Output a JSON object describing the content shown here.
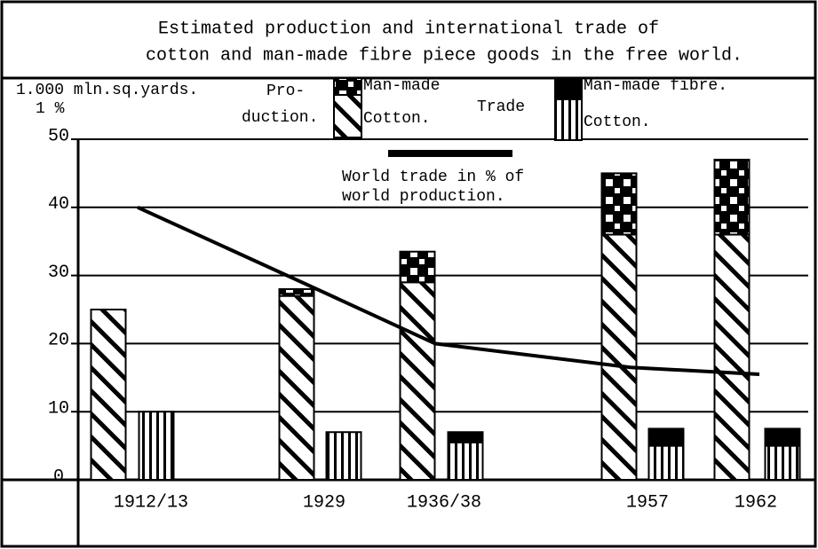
{
  "chart_data": {
    "type": "bar_line",
    "title": [
      "Estimated production and international trade of",
      "cotton and man-made fibre piece goods in the free world."
    ],
    "ylabel": [
      "1.000 mln.sq.yards.",
      "1 %"
    ],
    "production_label": [
      "Pro-",
      "duction."
    ],
    "trade_label": "Trade",
    "annotation": [
      "World trade in % of",
      "world production."
    ],
    "categories": [
      "1912/13",
      "1929",
      "1936/38",
      "1957",
      "1962"
    ],
    "ylim": [
      0,
      50
    ],
    "yticks": [
      0,
      10,
      20,
      30,
      40,
      50
    ],
    "grid": true,
    "series": [
      {
        "name": "Cotton.",
        "group": "production",
        "pattern": "diagonal",
        "color": "#000000",
        "values": [
          25,
          27,
          29,
          36,
          36
        ]
      },
      {
        "name": "Man-made",
        "group": "production",
        "pattern": "checker",
        "color": "#000000",
        "values": [
          0,
          1,
          4.5,
          9,
          11
        ]
      },
      {
        "name": "Cotton.",
        "group": "trade",
        "pattern": "vertical",
        "color": "#000000",
        "values": [
          10,
          7,
          5.5,
          5,
          5
        ]
      },
      {
        "name": "Man-made fibre.",
        "group": "trade",
        "pattern": "solid",
        "color": "#000000",
        "values": [
          0,
          0,
          1.5,
          2.5,
          2.5
        ]
      },
      {
        "name": "World trade in % of world production.",
        "type": "line",
        "color": "#000000",
        "values": [
          40,
          29,
          20,
          16.5,
          15.5
        ]
      }
    ]
  }
}
